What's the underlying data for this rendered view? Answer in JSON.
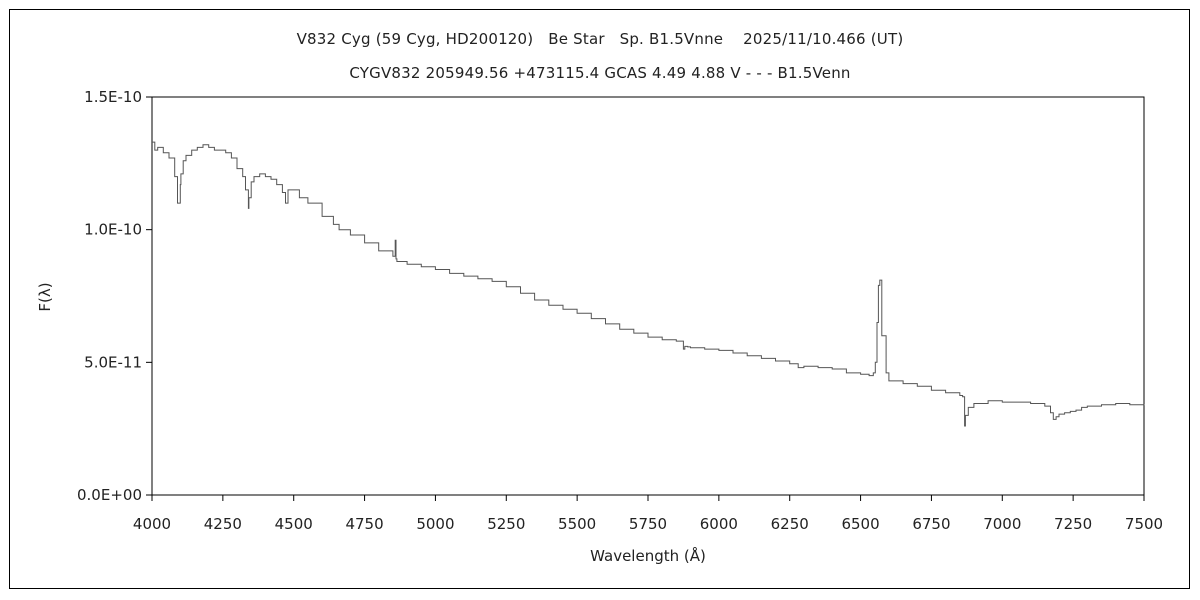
{
  "chart_data": {
    "type": "line",
    "title": "V832 Cyg (59 Cyg, HD200120)   Be Star   Sp. B1.5Vnne    2025/11/10.466 (UT)",
    "subtitle": "CYGV832 205949.56 +473115.4 GCAS 4.49 4.88 V - - - B1.5Venn",
    "xlabel": "Wavelength (Å)",
    "ylabel": "F(λ)",
    "xlim": [
      4000,
      7500
    ],
    "ylim": [
      0,
      1.5e-10
    ],
    "xticks": [
      4000,
      4250,
      4500,
      4750,
      5000,
      5250,
      5500,
      5750,
      6000,
      6250,
      6500,
      6750,
      7000,
      7250,
      7500
    ],
    "xtick_labels": [
      "4000",
      "4250",
      "4500",
      "4750",
      "5000",
      "5250",
      "5500",
      "5750",
      "6000",
      "6250",
      "6500",
      "6750",
      "7000",
      "7250",
      "7500"
    ],
    "yticks": [
      0,
      5e-11,
      1e-10,
      1.5e-10
    ],
    "ytick_labels": [
      "0.0E+00",
      "5.0E-11",
      "1.0E-10",
      "1.5E-10"
    ],
    "grid": false,
    "line_color": "#555555",
    "series": [
      {
        "x": [
          4000,
          4010,
          4020,
          4040,
          4060,
          4080,
          4090,
          4100,
          4102,
          4110,
          4120,
          4140,
          4160,
          4180,
          4200,
          4220,
          4240,
          4260,
          4280,
          4300,
          4320,
          4330,
          4340,
          4342,
          4350,
          4360,
          4380,
          4400,
          4420,
          4440,
          4460,
          4471,
          4480,
          4500,
          4520,
          4550,
          4600,
          4640,
          4660,
          4700,
          4750,
          4800,
          4850,
          4858,
          4861,
          4864,
          4880,
          4900,
          4950,
          5000,
          5050,
          5100,
          5150,
          5200,
          5250,
          5300,
          5350,
          5400,
          5450,
          5500,
          5550,
          5600,
          5650,
          5700,
          5750,
          5800,
          5850,
          5875,
          5880,
          5890,
          5900,
          5950,
          6000,
          6050,
          6100,
          6150,
          6200,
          6250,
          6280,
          6300,
          6350,
          6400,
          6450,
          6500,
          6530,
          6545,
          6552,
          6558,
          6563,
          6568,
          6575,
          6590,
          6600,
          6650,
          6700,
          6750,
          6800,
          6850,
          6860,
          6867,
          6870,
          6880,
          6900,
          6950,
          7000,
          7050,
          7100,
          7150,
          7170,
          7180,
          7190,
          7200,
          7220,
          7240,
          7260,
          7280,
          7300,
          7350,
          7400,
          7450,
          7500
        ],
        "y": [
          1.33e-10,
          1.3e-10,
          1.31e-10,
          1.29e-10,
          1.27e-10,
          1.2e-10,
          1.1e-10,
          1.17e-10,
          1.21e-10,
          1.26e-10,
          1.28e-10,
          1.3e-10,
          1.31e-10,
          1.32e-10,
          1.31e-10,
          1.3e-10,
          1.3e-10,
          1.29e-10,
          1.27e-10,
          1.23e-10,
          1.2e-10,
          1.15e-10,
          1.08e-10,
          1.12e-10,
          1.18e-10,
          1.2e-10,
          1.21e-10,
          1.2e-10,
          1.19e-10,
          1.17e-10,
          1.14e-10,
          1.1e-10,
          1.15e-10,
          1.15e-10,
          1.12e-10,
          1.1e-10,
          1.05e-10,
          1.02e-10,
          1e-10,
          9.8e-11,
          9.5e-11,
          9.2e-11,
          9e-11,
          9.6e-11,
          8.9e-11,
          8.8e-11,
          8.8e-11,
          8.7e-11,
          8.6e-11,
          8.5e-11,
          8.35e-11,
          8.25e-11,
          8.15e-11,
          8.05e-11,
          7.85e-11,
          7.6e-11,
          7.35e-11,
          7.15e-11,
          7e-11,
          6.85e-11,
          6.65e-11,
          6.45e-11,
          6.25e-11,
          6.1e-11,
          5.95e-11,
          5.85e-11,
          5.8e-11,
          5.5e-11,
          5.6e-11,
          5.58e-11,
          5.55e-11,
          5.5e-11,
          5.45e-11,
          5.35e-11,
          5.25e-11,
          5.15e-11,
          5.05e-11,
          4.95e-11,
          4.8e-11,
          4.85e-11,
          4.8e-11,
          4.75e-11,
          4.6e-11,
          4.55e-11,
          4.5e-11,
          4.6e-11,
          5e-11,
          6.5e-11,
          7.9e-11,
          8.1e-11,
          6e-11,
          4.6e-11,
          4.3e-11,
          4.2e-11,
          4.1e-11,
          3.95e-11,
          3.85e-11,
          3.75e-11,
          3.7e-11,
          2.6e-11,
          3e-11,
          3.3e-11,
          3.45e-11,
          3.55e-11,
          3.5e-11,
          3.5e-11,
          3.45e-11,
          3.35e-11,
          3.1e-11,
          2.85e-11,
          2.95e-11,
          3.05e-11,
          3.1e-11,
          3.15e-11,
          3.2e-11,
          3.3e-11,
          3.35e-11,
          3.4e-11,
          3.45e-11,
          3.4e-11,
          3.38e-11
        ]
      }
    ]
  }
}
